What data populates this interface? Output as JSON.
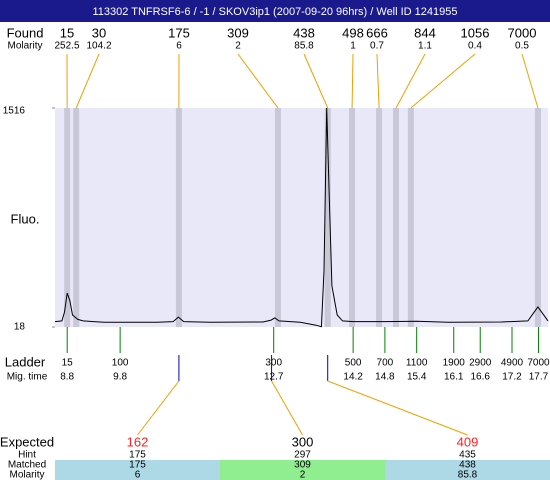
{
  "title": "113302  TNFRSF6-6 / -1 / SKOV3ip1 (2007-09-20 96hrs) / Well ID 1241955",
  "chart_data": {
    "type": "electropherogram",
    "y_label": "Fluo.",
    "ylim": [
      18,
      1516
    ],
    "yticks": [
      18,
      1516
    ],
    "xlim": [
      8.57,
      17.88
    ],
    "trace": {
      "color": "#000000",
      "x": [
        8.57,
        8.7,
        8.75,
        8.8,
        8.85,
        8.9,
        9.0,
        9.1,
        9.3,
        9.5,
        10.5,
        10.8,
        10.9,
        11.0,
        11.5,
        12.5,
        12.65,
        12.72,
        12.8,
        13.2,
        13.5,
        13.6,
        13.65,
        13.7,
        13.75,
        13.8,
        13.9,
        14.0,
        14.2,
        14.8,
        15.4,
        16.0,
        17.0,
        17.5,
        17.62,
        17.69,
        17.76,
        17.88
      ],
      "values": [
        55,
        60,
        120,
        250,
        200,
        100,
        70,
        60,
        55,
        50,
        50,
        55,
        86,
        55,
        50,
        52,
        65,
        80,
        60,
        50,
        30,
        20,
        400,
        1516,
        900,
        300,
        100,
        60,
        55,
        55,
        58,
        50,
        52,
        60,
        120,
        155,
        120,
        60
      ]
    },
    "found": {
      "label": "Found",
      "molarity_label": "Molarity",
      "sizes": [
        15,
        30,
        175,
        309,
        438,
        498,
        666,
        844,
        1056,
        7000
      ],
      "molarity": [
        252.5,
        104.2,
        6,
        2,
        85.8,
        1,
        0.7,
        1.1,
        0.4,
        0.5
      ],
      "x": [
        8.8,
        8.97,
        10.91,
        12.78,
        13.72,
        14.18,
        14.69,
        15.01,
        15.29,
        17.69
      ]
    },
    "ladder": {
      "label": "Ladder",
      "time_label": "Mig. time",
      "sizes": [
        15,
        100,
        300,
        500,
        700,
        1100,
        1900,
        2900,
        4900,
        7000
      ],
      "times": [
        8.8,
        9.8,
        12.7,
        14.2,
        14.8,
        15.4,
        16.1,
        16.6,
        17.2,
        17.7
      ]
    },
    "match_table": {
      "row_labels": [
        "Expected",
        "Hint",
        "Matched",
        "Molarity"
      ],
      "columns": [
        {
          "expected": 162,
          "hint": 175,
          "matched": 175,
          "molarity": 6,
          "x": 10.91,
          "color": "#ff2020",
          "bg": "#add8e6"
        },
        {
          "expected": 300,
          "hint": 297,
          "matched": 309,
          "molarity": 2,
          "x": 12.66,
          "color": "#000000",
          "bg": "#90ee90"
        },
        {
          "expected": 409,
          "hint": 435,
          "matched": 438,
          "molarity": 85.8,
          "x": 13.72,
          "color": "#ff2020",
          "bg": "#add8e6"
        }
      ]
    }
  }
}
